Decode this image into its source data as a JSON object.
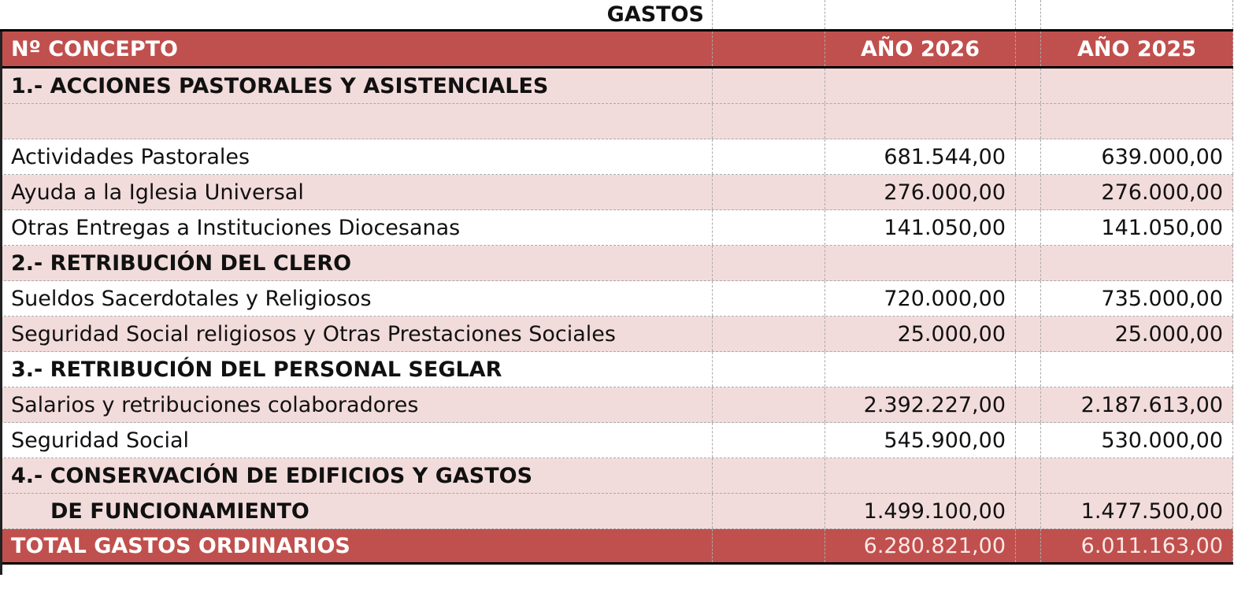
{
  "title": "GASTOS",
  "header": {
    "concept": "Nº CONCEPTO",
    "year_a": "AÑO 2026",
    "year_b": "AÑO 2025"
  },
  "colors": {
    "header_bg": "#c0504d",
    "band_pink": "#f2dcdb",
    "border": "#000000"
  },
  "rows": [
    {
      "type": "section",
      "label": "1.- ACCIONES PASTORALES Y ASISTENCIALES",
      "v2026": "",
      "v2025": ""
    },
    {
      "type": "blank",
      "label": "",
      "v2026": "",
      "v2025": ""
    },
    {
      "type": "item",
      "label": "Actividades Pastorales",
      "v2026": "681.544,00",
      "v2025": "639.000,00"
    },
    {
      "type": "item",
      "label": "Ayuda a la Iglesia Universal",
      "v2026": "276.000,00",
      "v2025": "276.000,00"
    },
    {
      "type": "item",
      "label": "Otras Entregas a Instituciones Diocesanas",
      "v2026": "141.050,00",
      "v2025": "141.050,00"
    },
    {
      "type": "section",
      "label": "2.- RETRIBUCIÓN DEL CLERO",
      "v2026": "",
      "v2025": ""
    },
    {
      "type": "item",
      "label": "Sueldos Sacerdotales y Religiosos",
      "v2026": "720.000,00",
      "v2025": "735.000,00"
    },
    {
      "type": "item",
      "label": "Seguridad Social religiosos y Otras Prestaciones Sociales",
      "v2026": "25.000,00",
      "v2025": "25.000,00"
    },
    {
      "type": "section",
      "label": "3.- RETRIBUCIÓN DEL PERSONAL SEGLAR",
      "v2026": "",
      "v2025": ""
    },
    {
      "type": "item",
      "label": "Salarios y retribuciones colaboradores",
      "v2026": "2.392.227,00",
      "v2025": "2.187.613,00"
    },
    {
      "type": "item",
      "label": "Seguridad Social",
      "v2026": "545.900,00",
      "v2025": "530.000,00"
    },
    {
      "type": "section",
      "label": "4.- CONSERVACIÓN DE EDIFICIOS Y GASTOS",
      "v2026": "",
      "v2025": ""
    },
    {
      "type": "section",
      "label": "DE FUNCIONAMIENTO",
      "v2026": "1.499.100,00",
      "v2025": "1.477.500,00"
    }
  ],
  "total": {
    "label": "TOTAL GASTOS ORDINARIOS",
    "v2026": "6.280.821,00",
    "v2025": "6.011.163,00"
  }
}
